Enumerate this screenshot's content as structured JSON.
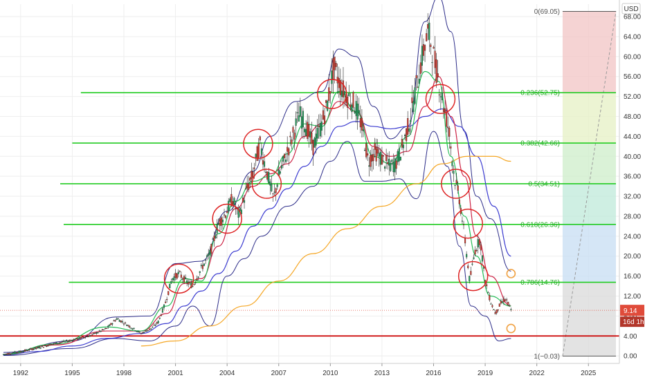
{
  "chart_data": {
    "type": "candlestick",
    "currency": "USD",
    "grid": true,
    "legend": "none",
    "xlim": [
      1990.8,
      2026.8
    ],
    "ylim": [
      -1.5,
      70.5
    ],
    "x_ticks": [
      "1992",
      "1995",
      "1998",
      "2001",
      "2004",
      "2007",
      "2010",
      "2013",
      "2016",
      "2019",
      "2022",
      "2025"
    ],
    "y_ticks": [
      "0.00",
      "4.00",
      "8.00",
      "12.00",
      "16.00",
      "20.00",
      "24.00",
      "28.00",
      "32.00",
      "36.00",
      "40.00",
      "44.00",
      "48.00",
      "52.00",
      "56.00",
      "60.00",
      "64.00",
      "68.00"
    ],
    "price_series": {
      "x": [
        1991.0,
        1992.0,
        1993.0,
        1994.0,
        1995.0,
        1996.0,
        1997.0,
        1997.6,
        1998.3,
        1999.0,
        1999.6,
        2000.0,
        2000.4,
        2000.8,
        2001.2,
        2001.6,
        2002.0,
        2002.5,
        2003.0,
        2003.5,
        2003.9,
        2004.3,
        2004.7,
        2005.1,
        2005.5,
        2005.9,
        2006.3,
        2006.7,
        2007.0,
        2007.4,
        2007.8,
        2008.2,
        2008.6,
        2009.0,
        2009.4,
        2009.8,
        2010.2,
        2010.6,
        2011.0,
        2011.4,
        2011.8,
        2012.2,
        2012.6,
        2013.0,
        2013.4,
        2013.8,
        2014.2,
        2014.6,
        2015.0,
        2015.4,
        2015.7,
        2016.0,
        2016.3,
        2016.6,
        2016.9,
        2017.2,
        2017.5,
        2017.8,
        2018.1,
        2018.4,
        2018.7,
        2019.0,
        2019.3,
        2019.6,
        2019.9,
        2020.2,
        2020.5
      ],
      "y": [
        0.3,
        0.9,
        1.6,
        2.5,
        3.2,
        4.0,
        5.5,
        7.5,
        6.0,
        4.5,
        5.5,
        6.8,
        10.5,
        15.5,
        16.5,
        15.0,
        14.0,
        17.5,
        20.5,
        26.5,
        28.5,
        31.5,
        28.0,
        33.0,
        36.5,
        42.5,
        37.0,
        31.5,
        36.0,
        40.0,
        44.0,
        48.5,
        46.0,
        42.0,
        45.5,
        50.0,
        58.0,
        54.0,
        52.0,
        50.5,
        46.5,
        39.0,
        41.0,
        39.5,
        38.0,
        38.5,
        42.0,
        47.0,
        54.0,
        61.0,
        65.0,
        60.0,
        55.0,
        50.0,
        45.0,
        36.0,
        31.5,
        24.0,
        15.0,
        21.0,
        23.5,
        15.0,
        11.0,
        8.5,
        10.5,
        11.5,
        9.14
      ]
    },
    "moving_averages": [
      {
        "color": "#3a3ad0",
        "x": [
          1991.0,
          1993.0,
          1995.0,
          1997.0,
          1999.0,
          2000.5,
          2001.5,
          2002.5,
          2003.5,
          2004.5,
          2005.5,
          2006.5,
          2007.5,
          2008.5,
          2009.5,
          2010.5,
          2011.5,
          2012.5,
          2013.5,
          2014.5,
          2015.5,
          2016.5,
          2017.5,
          2018.5,
          2019.5,
          2020.5
        ],
        "y": [
          0.2,
          0.9,
          2.0,
          3.5,
          4.5,
          6.5,
          10.0,
          13.0,
          16.5,
          21.0,
          26.0,
          29.5,
          33.5,
          38.0,
          42.0,
          46.0,
          47.0,
          46.0,
          45.5,
          46.0,
          48.0,
          49.5,
          46.0,
          40.0,
          30.0,
          20.0
        ]
      },
      {
        "color": "#f5a623",
        "x": [
          1999.0,
          2001.0,
          2003.0,
          2005.0,
          2007.0,
          2009.0,
          2011.0,
          2013.0,
          2015.0,
          2016.5,
          2018.0,
          2019.5,
          2020.5
        ],
        "y": [
          2.0,
          3.0,
          6.0,
          10.0,
          15.0,
          20.5,
          25.5,
          30.0,
          34.5,
          38.5,
          40.0,
          40.0,
          39.0
        ]
      },
      {
        "color": "#cc2244",
        "x": [
          1991.0,
          1994.0,
          1997.0,
          1999.0,
          2000.5,
          2001.5,
          2002.5,
          2003.5,
          2004.5,
          2005.5,
          2006.5,
          2007.5,
          2008.5,
          2009.5,
          2010.5,
          2011.5,
          2012.5,
          2013.5,
          2014.5,
          2015.5,
          2016.3,
          2017.0,
          2017.8,
          2018.5,
          2019.3,
          2020.5
        ],
        "y": [
          0.3,
          2.2,
          5.0,
          5.0,
          8.5,
          14.5,
          15.5,
          22.0,
          29.5,
          34.0,
          36.5,
          38.5,
          44.0,
          46.5,
          51.0,
          49.0,
          42.0,
          40.0,
          41.0,
          50.0,
          56.0,
          48.0,
          36.0,
          24.0,
          16.0,
          10.0
        ]
      },
      {
        "color": "#22bb55",
        "x": [
          1991.0,
          1994.0,
          1997.0,
          1999.0,
          2000.5,
          2001.5,
          2002.5,
          2003.5,
          2004.5,
          2005.5,
          2006.5,
          2007.5,
          2008.5,
          2009.5,
          2010.5,
          2011.5,
          2012.5,
          2013.5,
          2014.5,
          2015.5,
          2016.3,
          2017.0,
          2017.8,
          2018.5,
          2019.3,
          2020.5
        ],
        "y": [
          0.3,
          2.4,
          5.8,
          5.0,
          10.0,
          15.5,
          15.0,
          24.5,
          31.0,
          35.0,
          36.0,
          40.5,
          46.5,
          46.0,
          53.0,
          49.0,
          40.0,
          38.5,
          44.0,
          57.0,
          55.0,
          40.0,
          28.0,
          20.0,
          12.0,
          10.0
        ]
      }
    ],
    "bollinger": {
      "upper": {
        "x": [
          1991.0,
          1995.0,
          1997.5,
          1999.5,
          2001.0,
          2002.5,
          2004.0,
          2005.5,
          2006.5,
          2008.0,
          2009.5,
          2010.5,
          2011.5,
          2012.5,
          2013.5,
          2014.5,
          2015.5,
          2016.3,
          2017.0,
          2017.8,
          2018.5,
          2019.3,
          2020.5
        ],
        "y": [
          0.7,
          3.0,
          7.8,
          8.0,
          18.5,
          19.0,
          29.0,
          37.0,
          44.0,
          51.0,
          53.0,
          61.5,
          60.0,
          50.0,
          43.5,
          46.0,
          67.0,
          72.0,
          65.0,
          45.0,
          32.0,
          27.5,
          17.0
        ]
      },
      "lower": {
        "x": [
          1991.0,
          1995.0,
          1997.5,
          1999.5,
          2001.0,
          2002.0,
          2003.0,
          2004.0,
          2005.0,
          2006.0,
          2007.5,
          2009.0,
          2010.0,
          2011.0,
          2012.0,
          2013.0,
          2014.0,
          2015.0,
          2016.0,
          2016.8,
          2017.5,
          2018.2,
          2019.0,
          2019.8,
          2020.5
        ],
        "y": [
          0.1,
          1.5,
          3.5,
          3.0,
          6.0,
          10.0,
          6.0,
          16.0,
          19.5,
          24.0,
          30.0,
          34.0,
          39.0,
          43.0,
          35.0,
          35.0,
          35.5,
          31.5,
          45.0,
          38.0,
          22.0,
          10.0,
          8.0,
          3.0,
          3.5
        ]
      }
    },
    "support_line": {
      "y": 4.0,
      "color": "#cc0000"
    },
    "fibonacci": {
      "levels": [
        {
          "ratio": "0",
          "value": 69.05,
          "label": "0(69.05)",
          "color": "#555555"
        },
        {
          "ratio": "0.236",
          "value": 52.75,
          "label": "0.236(52.75)",
          "color": "#22cc22"
        },
        {
          "ratio": "0.382",
          "value": 42.66,
          "label": "0.382(42.66)",
          "color": "#22cc22"
        },
        {
          "ratio": "0.5",
          "value": 34.51,
          "label": "0.5(34.51)",
          "color": "#22cc22"
        },
        {
          "ratio": "0.618",
          "value": 26.36,
          "label": "0.618(26.36)",
          "color": "#22cc22"
        },
        {
          "ratio": "0.786",
          "value": 14.76,
          "label": "0.786(14.76)",
          "color": "#22cc22"
        },
        {
          "ratio": "1",
          "value": -0.03,
          "label": "1(−0.03)",
          "color": "#555555"
        }
      ],
      "zone_colors": [
        "#f2c4c4",
        "#e5f0c4",
        "#cdeec9",
        "#bfe9d9",
        "#c7ddf3",
        "#d9d9d9"
      ],
      "trend_line": {
        "x1": 2023.5,
        "y1": -0.03,
        "x2": 2026.6,
        "y2": 69.05
      }
    },
    "line_starts": [
      1995.5,
      1995.0,
      1994.3,
      1994.5,
      1994.8
    ],
    "circles": [
      {
        "x": 2001.2,
        "y": 15.5,
        "color": "#dd2222"
      },
      {
        "x": 2004.0,
        "y": 27.5,
        "color": "#dd2222"
      },
      {
        "x": 2005.8,
        "y": 42.5,
        "color": "#dd2222"
      },
      {
        "x": 2006.3,
        "y": 34.5,
        "color": "#dd2222"
      },
      {
        "x": 2010.1,
        "y": 52.5,
        "color": "#dd2222"
      },
      {
        "x": 2016.4,
        "y": 51.5,
        "color": "#dd2222"
      },
      {
        "x": 2017.3,
        "y": 34.5,
        "color": "#dd2222"
      },
      {
        "x": 2018.0,
        "y": 26.5,
        "color": "#dd2222"
      },
      {
        "x": 2018.3,
        "y": 16.0,
        "color": "#dd2222"
      },
      {
        "x": 2020.5,
        "y": 16.5,
        "color": "#f0a040",
        "small": true
      },
      {
        "x": 2020.5,
        "y": 5.5,
        "color": "#f0a040",
        "small": true
      }
    ],
    "last_price": {
      "value": 9.14,
      "label": "9.14",
      "countdown": "16d 1h",
      "color": "#e04b3a"
    }
  }
}
